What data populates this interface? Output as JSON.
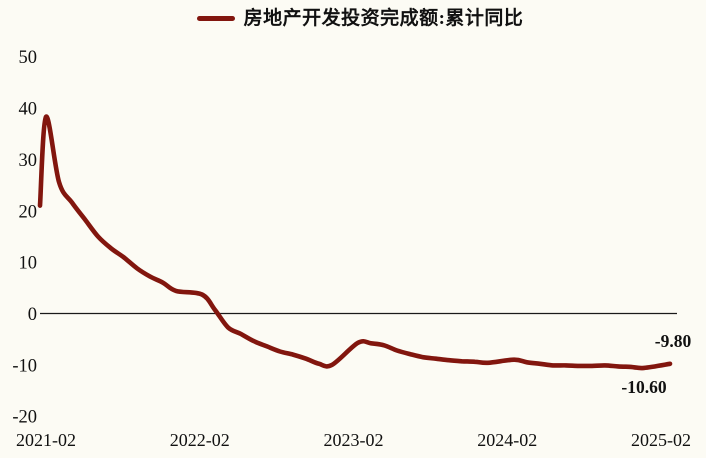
{
  "window": {
    "background": "#FCFBF4"
  },
  "legend": {
    "label": "房地产开发投资完成额:累计同比",
    "swatch_color": "#82160E"
  },
  "chart_data": {
    "type": "line",
    "title": "房地产开发投资完成额:累计同比",
    "xlabel": "",
    "ylabel": "",
    "ylim": [
      -20,
      50
    ],
    "y_ticks": [
      50,
      40,
      30,
      20,
      10,
      0,
      -10,
      -20
    ],
    "x_ticks": [
      "2021-02",
      "2022-02",
      "2023-02",
      "2024-02",
      "2025-02"
    ],
    "grid": false,
    "zero_line": true,
    "legend_position": "top-center",
    "line_color": "#82160E",
    "zero_line_color": "#1A1A1A",
    "edge_start_value": 21,
    "series": [
      {
        "name": "房地产开发投资完成额:累计同比",
        "points": [
          {
            "x": "2021-02",
            "y": 38.3
          },
          {
            "x": "2021-03",
            "y": 25.6
          },
          {
            "x": "2021-04",
            "y": 21.6
          },
          {
            "x": "2021-05",
            "y": 18.3
          },
          {
            "x": "2021-06",
            "y": 15.0
          },
          {
            "x": "2021-07",
            "y": 12.7
          },
          {
            "x": "2021-08",
            "y": 10.9
          },
          {
            "x": "2021-09",
            "y": 8.8
          },
          {
            "x": "2021-10",
            "y": 7.2
          },
          {
            "x": "2021-11",
            "y": 6.0
          },
          {
            "x": "2021-12",
            "y": 4.4
          },
          {
            "x": "2022-02",
            "y": 3.7
          },
          {
            "x": "2022-03",
            "y": 0.7
          },
          {
            "x": "2022-04",
            "y": -2.7
          },
          {
            "x": "2022-05",
            "y": -4.0
          },
          {
            "x": "2022-06",
            "y": -5.4
          },
          {
            "x": "2022-07",
            "y": -6.4
          },
          {
            "x": "2022-08",
            "y": -7.4
          },
          {
            "x": "2022-09",
            "y": -8.0
          },
          {
            "x": "2022-10",
            "y": -8.8
          },
          {
            "x": "2022-11",
            "y": -9.8
          },
          {
            "x": "2022-12",
            "y": -10.0
          },
          {
            "x": "2023-02",
            "y": -5.7
          },
          {
            "x": "2023-03",
            "y": -5.8
          },
          {
            "x": "2023-04",
            "y": -6.2
          },
          {
            "x": "2023-05",
            "y": -7.2
          },
          {
            "x": "2023-06",
            "y": -7.9
          },
          {
            "x": "2023-07",
            "y": -8.5
          },
          {
            "x": "2023-08",
            "y": -8.8
          },
          {
            "x": "2023-09",
            "y": -9.1
          },
          {
            "x": "2023-10",
            "y": -9.3
          },
          {
            "x": "2023-11",
            "y": -9.4
          },
          {
            "x": "2023-12",
            "y": -9.6
          },
          {
            "x": "2024-02",
            "y": -9.0
          },
          {
            "x": "2024-03",
            "y": -9.5
          },
          {
            "x": "2024-04",
            "y": -9.8
          },
          {
            "x": "2024-05",
            "y": -10.1
          },
          {
            "x": "2024-06",
            "y": -10.1
          },
          {
            "x": "2024-07",
            "y": -10.2
          },
          {
            "x": "2024-08",
            "y": -10.2
          },
          {
            "x": "2024-09",
            "y": -10.1
          },
          {
            "x": "2024-10",
            "y": -10.3
          },
          {
            "x": "2024-11",
            "y": -10.4
          },
          {
            "x": "2024-12",
            "y": -10.6
          },
          {
            "x": "2025-02",
            "y": -9.8
          }
        ]
      }
    ],
    "annotations": [
      {
        "text": "-9.80",
        "x": "2025-02",
        "y": -9.8,
        "placement": "above"
      },
      {
        "text": "-10.60",
        "x": "2024-12",
        "y": -10.6,
        "placement": "below"
      }
    ]
  }
}
